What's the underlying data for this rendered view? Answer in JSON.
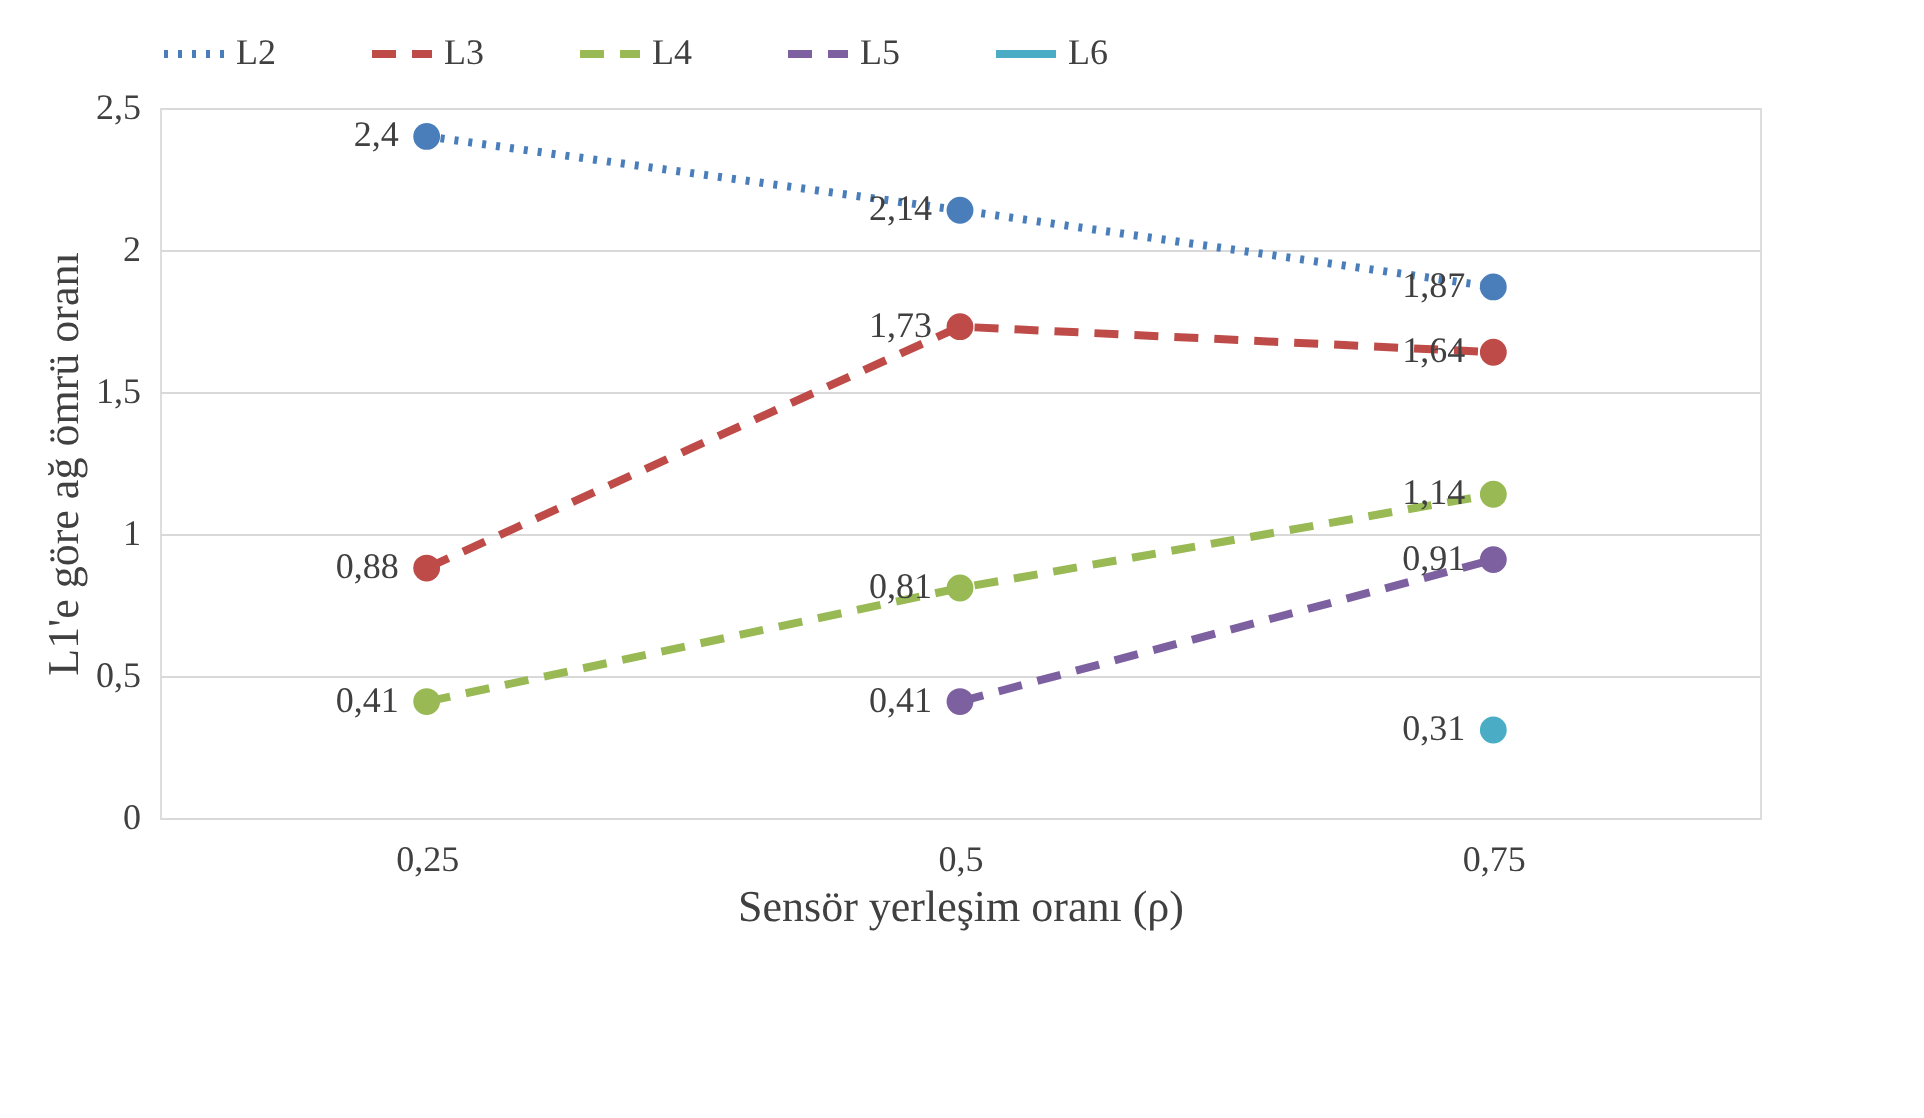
{
  "chart_data": {
    "type": "line",
    "xlabel": "Sensör yerleşim oranı (ρ)",
    "ylabel": "L1'e göre ağ ömrü oranı",
    "categories": [
      "0,25",
      "0,5",
      "0,75"
    ],
    "ylim": [
      0,
      2.5
    ],
    "yticks": [
      0,
      {
        "value": 0.5,
        "label": "0,5"
      },
      1,
      {
        "value": 1.5,
        "label": "1,5"
      },
      2,
      {
        "value": 2.5,
        "label": "2,5"
      }
    ],
    "grid": "y",
    "legend": "top",
    "marker": "circle",
    "series": [
      {
        "name": "L2",
        "color": "#4a7ebb",
        "line_style": "dotted",
        "values": [
          2.4,
          2.14,
          1.87
        ],
        "value_labels": [
          "2,4",
          "2,14",
          "1,87"
        ]
      },
      {
        "name": "L3",
        "color": "#be4b48",
        "line_style": "dashed",
        "values": [
          0.88,
          1.73,
          1.64
        ],
        "value_labels": [
          "0,88",
          "1,73",
          "1,64"
        ]
      },
      {
        "name": "L4",
        "color": "#98b954",
        "line_style": "dashed",
        "values": [
          0.41,
          0.81,
          1.14
        ],
        "value_labels": [
          "0,41",
          "0,81",
          "1,14"
        ]
      },
      {
        "name": "L5",
        "color": "#7d60a0",
        "line_style": "dashed",
        "values": [
          null,
          0.41,
          0.91
        ],
        "value_labels": [
          null,
          "0,41",
          "0,91"
        ]
      },
      {
        "name": "L6",
        "color": "#4bacc6",
        "line_style": "solid",
        "values": [
          null,
          null,
          0.31
        ],
        "value_labels": [
          null,
          null,
          "0,31"
        ]
      }
    ]
  }
}
